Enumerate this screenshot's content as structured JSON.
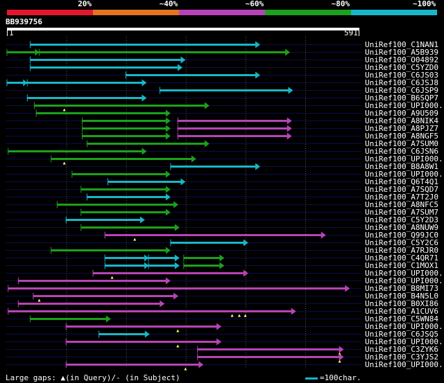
{
  "colors": {
    "cyan": "#17b7c9",
    "green": "#1da01d",
    "magenta": "#b843b8",
    "red": "#e2172f",
    "orange": "#e47420",
    "grid": "#555555",
    "row_stripe": "#0c0c4a"
  },
  "scale": {
    "labels": [
      "20%",
      "~40%",
      "~60%",
      "~80%",
      "~100%"
    ],
    "colors": [
      "#e2172f",
      "#e47420",
      "#b843b8",
      "#1da01d",
      "#17b7c9"
    ]
  },
  "query": {
    "id": "BB939756",
    "start": "1",
    "end": "591",
    "length": 591
  },
  "footer": {
    "text": "Large gaps: ▲(in Query)/- (in Subject)",
    "legend_text": "=100char."
  },
  "hits": [
    {
      "name": "UniRef100_C1NAN1",
      "color": "cyan",
      "segs": [
        [
          40,
          425
        ]
      ],
      "startMark": true,
      "endArrow": true,
      "qgaps": []
    },
    {
      "name": "UniRef100_A5B939",
      "color": "green",
      "segs": [
        [
          1,
          55
        ],
        [
          55,
          475
        ]
      ],
      "startMark": true,
      "endArrow": true,
      "qgaps": []
    },
    {
      "name": "UniRef100_O04892",
      "color": "cyan",
      "segs": [
        [
          40,
          300
        ]
      ],
      "startMark": true,
      "endArrow": true,
      "qgaps": []
    },
    {
      "name": "UniRef100_C5YZD0",
      "color": "cyan",
      "segs": [
        [
          40,
          295
        ]
      ],
      "startMark": true,
      "endArrow": true,
      "qgaps": []
    },
    {
      "name": "UniRef100_C6JS03",
      "color": "cyan",
      "segs": [
        [
          200,
          425
        ]
      ],
      "startMark": true,
      "endArrow": true,
      "qgaps": []
    },
    {
      "name": "UniRef100_C6JSJ8",
      "color": "cyan",
      "segs": [
        [
          1,
          35
        ],
        [
          35,
          235
        ]
      ],
      "startMark": true,
      "endArrow": true,
      "qgaps": []
    },
    {
      "name": "UniRef100_C6JSP9",
      "color": "cyan",
      "segs": [
        [
          257,
          480
        ]
      ],
      "startMark": true,
      "endArrow": true,
      "qgaps": []
    },
    {
      "name": "UniRef100_B6SQP7",
      "color": "cyan",
      "segs": [
        [
          35,
          235
        ]
      ],
      "startMark": true,
      "endArrow": true,
      "qgaps": []
    },
    {
      "name": "UniRef100_UPI000..",
      "color": "green",
      "segs": [
        [
          47,
          340
        ]
      ],
      "startMark": true,
      "endArrow": true,
      "qgaps": [
        97
      ]
    },
    {
      "name": "UniRef100_A9U509",
      "color": "green",
      "segs": [
        [
          50,
          275
        ]
      ],
      "startMark": true,
      "endArrow": true,
      "qgaps": []
    },
    {
      "name": "UniRef100_A8NIK4",
      "color": "green",
      "segs": [
        [
          127,
          275
        ]
      ],
      "startMark": true,
      "endArrow": true,
      "qgaps": [],
      "second": {
        "color": "magenta",
        "segs": [
          [
            287,
            478
          ]
        ]
      }
    },
    {
      "name": "UniRef100_A8PJZ7",
      "color": "green",
      "segs": [
        [
          127,
          275
        ]
      ],
      "startMark": true,
      "endArrow": true,
      "qgaps": [],
      "second": {
        "color": "magenta",
        "segs": [
          [
            287,
            478
          ]
        ]
      }
    },
    {
      "name": "UniRef100_A8NGF5",
      "color": "green",
      "segs": [
        [
          127,
          275
        ]
      ],
      "startMark": true,
      "endArrow": true,
      "qgaps": [],
      "second": {
        "color": "magenta",
        "segs": [
          [
            287,
            478
          ]
        ]
      }
    },
    {
      "name": "UniRef100_A7SUM0",
      "color": "green",
      "segs": [
        [
          135,
          340
        ]
      ],
      "startMark": true,
      "endArrow": true,
      "qgaps": []
    },
    {
      "name": "UniRef100_C6JSN6",
      "color": "green",
      "segs": [
        [
          3,
          235
        ]
      ],
      "startMark": true,
      "endArrow": true,
      "qgaps": []
    },
    {
      "name": "UniRef100_UPI000..",
      "color": "green",
      "segs": [
        [
          75,
          318
        ]
      ],
      "startMark": true,
      "endArrow": true,
      "qgaps": [
        97
      ]
    },
    {
      "name": "UniRef100_B8A8W1",
      "color": "cyan",
      "segs": [
        [
          275,
          425
        ]
      ],
      "startMark": true,
      "endArrow": true,
      "qgaps": []
    },
    {
      "name": "UniRef100_UPI000..",
      "color": "green",
      "segs": [
        [
          110,
          275
        ]
      ],
      "startMark": true,
      "endArrow": true,
      "qgaps": []
    },
    {
      "name": "UniRef100_Q6T4Q1",
      "color": "cyan",
      "segs": [
        [
          170,
          300
        ]
      ],
      "startMark": true,
      "endArrow": true,
      "qgaps": []
    },
    {
      "name": "UniRef100_A7SQD7",
      "color": "green",
      "segs": [
        [
          125,
          275
        ]
      ],
      "startMark": true,
      "endArrow": true,
      "qgaps": []
    },
    {
      "name": "UniRef100_A7T2J0",
      "color": "cyan",
      "segs": [
        [
          135,
          275
        ]
      ],
      "startMark": true,
      "endArrow": true,
      "qgaps": []
    },
    {
      "name": "UniRef100_A8NFC5",
      "color": "green",
      "segs": [
        [
          85,
          288
        ]
      ],
      "startMark": true,
      "endArrow": true,
      "qgaps": []
    },
    {
      "name": "UniRef100_A7SUM7",
      "color": "green",
      "segs": [
        [
          125,
          275
        ]
      ],
      "startMark": true,
      "endArrow": true,
      "qgaps": []
    },
    {
      "name": "UniRef100_C5Y2D3",
      "color": "cyan",
      "segs": [
        [
          100,
          232
        ]
      ],
      "startMark": true,
      "endArrow": true,
      "qgaps": []
    },
    {
      "name": "UniRef100_A8NUW9",
      "color": "green",
      "segs": [
        [
          125,
          290
        ]
      ],
      "startMark": true,
      "endArrow": true,
      "qgaps": []
    },
    {
      "name": "UniRef100_Q99JC0",
      "color": "magenta",
      "segs": [
        [
          165,
          535
        ]
      ],
      "startMark": true,
      "endArrow": true,
      "qgaps": [
        215
      ]
    },
    {
      "name": "UniRef100_C5Y2C6",
      "color": "cyan",
      "segs": [
        [
          275,
          405
        ]
      ],
      "startMark": true,
      "endArrow": true,
      "qgaps": []
    },
    {
      "name": "UniRef100_A7RJR0",
      "color": "green",
      "segs": [
        [
          75,
          275
        ]
      ],
      "startMark": true,
      "endArrow": true,
      "qgaps": []
    },
    {
      "name": "UniRef100_C4QR71",
      "color": "cyan",
      "segs": [
        [
          165,
          238
        ],
        [
          238,
          290
        ]
      ],
      "startMark": true,
      "endArrow": true,
      "qgaps": [],
      "second": {
        "color": "green",
        "segs": [
          [
            297,
            365
          ]
        ]
      }
    },
    {
      "name": "UniRef100_C1MOX1",
      "color": "cyan",
      "segs": [
        [
          165,
          238
        ],
        [
          238,
          290
        ]
      ],
      "startMark": true,
      "endArrow": true,
      "qgaps": [],
      "second": {
        "color": "green",
        "segs": [
          [
            297,
            365
          ]
        ]
      }
    },
    {
      "name": "UniRef100_UPI000..",
      "color": "magenta",
      "segs": [
        [
          145,
          405
        ]
      ],
      "startMark": true,
      "endArrow": true,
      "qgaps": [
        177
      ]
    },
    {
      "name": "UniRef100_UPI000..",
      "color": "magenta",
      "segs": [
        [
          20,
          275
        ]
      ],
      "startMark": true,
      "endArrow": true,
      "qgaps": []
    },
    {
      "name": "UniRef100_B8MI73",
      "color": "magenta",
      "segs": [
        [
          3,
          575
        ]
      ],
      "startMark": true,
      "endArrow": true,
      "qgaps": []
    },
    {
      "name": "UniRef100_B4N5L0",
      "color": "magenta",
      "segs": [
        [
          45,
          288
        ]
      ],
      "startMark": true,
      "endArrow": true,
      "qgaps": [
        55
      ]
    },
    {
      "name": "UniRef100_B0XI86",
      "color": "magenta",
      "segs": [
        [
          20,
          265
        ]
      ],
      "startMark": true,
      "endArrow": true,
      "qgaps": []
    },
    {
      "name": "UniRef100_A1CUV6",
      "color": "magenta",
      "segs": [
        [
          3,
          485
        ]
      ],
      "startMark": true,
      "endArrow": true,
      "qgaps": [
        378,
        390,
        400
      ]
    },
    {
      "name": "UniRef100_C5WN84",
      "color": "green",
      "segs": [
        [
          40,
          175
        ]
      ],
      "startMark": true,
      "endArrow": true,
      "qgaps": []
    },
    {
      "name": "UniRef100_UPI000..",
      "color": "magenta",
      "segs": [
        [
          100,
          360
        ]
      ],
      "startMark": true,
      "endArrow": true,
      "qgaps": [
        287
      ]
    },
    {
      "name": "UniRef100_C6JSQ5",
      "color": "cyan",
      "segs": [
        [
          155,
          240
        ]
      ],
      "startMark": true,
      "endArrow": true,
      "qgaps": []
    },
    {
      "name": "UniRef100_UPI000..",
      "color": "magenta",
      "segs": [
        [
          100,
          360
        ]
      ],
      "startMark": true,
      "endArrow": true,
      "qgaps": [
        287
      ]
    },
    {
      "name": "UniRef100_C3ZYK6",
      "color": "magenta",
      "segs": [
        [
          320,
          565
        ]
      ],
      "startMark": true,
      "endArrow": true,
      "qgaps": [
        558
      ]
    },
    {
      "name": "UniRef100_C3YJS2",
      "color": "magenta",
      "segs": [
        [
          320,
          565
        ]
      ],
      "startMark": true,
      "endArrow": true,
      "qgaps": [
        558
      ]
    },
    {
      "name": "UniRef100_UPI000..",
      "color": "magenta",
      "segs": [
        [
          100,
          330
        ]
      ],
      "startMark": true,
      "endArrow": true,
      "qgaps": [
        300
      ]
    }
  ]
}
